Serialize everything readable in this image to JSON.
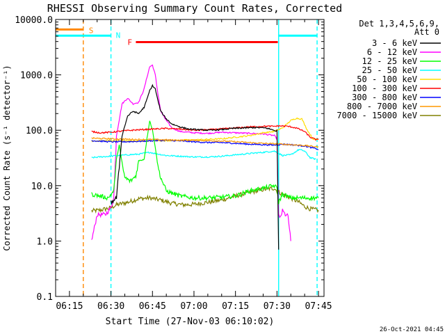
{
  "chart_data": {
    "type": "line",
    "title": "RHESSI Observing Summary Count Rates, Corrected",
    "xlabel": "Start Time (27-Nov-03 06:10:02)",
    "ylabel": "Corrected Count Rate (s⁻¹ detector⁻¹)",
    "yscale": "log",
    "ylim": [
      0.1,
      10000
    ],
    "xlim_minutes": [
      0,
      97
    ],
    "x_ticks": [
      {
        "m": 5,
        "label": "06:15"
      },
      {
        "m": 20,
        "label": "06:30"
      },
      {
        "m": 35,
        "label": "06:45"
      },
      {
        "m": 50,
        "label": "07:00"
      },
      {
        "m": 65,
        "label": "07:15"
      },
      {
        "m": 80,
        "label": "07:30"
      },
      {
        "m": 95,
        "label": "07:45"
      }
    ],
    "y_ticks": [
      {
        "v": 0.1,
        "label": "0.1"
      },
      {
        "v": 1,
        "label": "1.0"
      },
      {
        "v": 10,
        "label": "10.0"
      },
      {
        "v": 100,
        "label": "100.0"
      },
      {
        "v": 1000,
        "label": "1000.0"
      },
      {
        "v": 10000,
        "label": "10000.0"
      }
    ],
    "legend_header": [
      "Det 1,3,4,5,6,9,",
      "Att 0"
    ],
    "legend_position": "right",
    "series": [
      {
        "name": "3 - 6 keV",
        "color": "#000000",
        "points": [
          [
            20,
            5
          ],
          [
            22,
            6
          ],
          [
            24,
            80
          ],
          [
            26,
            180
          ],
          [
            28,
            220
          ],
          [
            30,
            200
          ],
          [
            32,
            260
          ],
          [
            33,
            360
          ],
          [
            34,
            520
          ],
          [
            35,
            640
          ],
          [
            36,
            560
          ],
          [
            37,
            340
          ],
          [
            38,
            220
          ],
          [
            40,
            160
          ],
          [
            42,
            130
          ],
          [
            45,
            115
          ],
          [
            48,
            105
          ],
          [
            52,
            102
          ],
          [
            56,
            100
          ],
          [
            60,
            103
          ],
          [
            64,
            108
          ],
          [
            68,
            110
          ],
          [
            72,
            112
          ],
          [
            76,
            110
          ],
          [
            79,
            100
          ],
          [
            80,
            95
          ],
          [
            80.6,
            0.7
          ]
        ]
      },
      {
        "name": "6 - 12 keV",
        "color": "#ff00ff",
        "points": [
          [
            13,
            1
          ],
          [
            15,
            3
          ],
          [
            18,
            3
          ],
          [
            20,
            4
          ],
          [
            21,
            6
          ],
          [
            22,
            80
          ],
          [
            24,
            300
          ],
          [
            26,
            380
          ],
          [
            28,
            300
          ],
          [
            30,
            320
          ],
          [
            32,
            560
          ],
          [
            33,
            900
          ],
          [
            34,
            1400
          ],
          [
            35,
            1500
          ],
          [
            36,
            1000
          ],
          [
            37,
            450
          ],
          [
            38,
            220
          ],
          [
            40,
            150
          ],
          [
            42,
            110
          ],
          [
            45,
            95
          ],
          [
            50,
            90
          ],
          [
            55,
            88
          ],
          [
            60,
            92
          ],
          [
            65,
            90
          ],
          [
            70,
            88
          ],
          [
            75,
            86
          ],
          [
            79,
            80
          ],
          [
            80,
            70
          ],
          [
            80.6,
            3
          ],
          [
            81,
            2.5
          ],
          [
            82,
            3.5
          ],
          [
            83,
            3
          ],
          [
            84,
            2.8
          ],
          [
            85,
            1
          ]
        ]
      },
      {
        "name": "12 - 25 keV",
        "color": "#00ff00",
        "points": [
          [
            13,
            7
          ],
          [
            16,
            6.5
          ],
          [
            19,
            6
          ],
          [
            21,
            8
          ],
          [
            22,
            30
          ],
          [
            23,
            55
          ],
          [
            24,
            25
          ],
          [
            25,
            14
          ],
          [
            27,
            12
          ],
          [
            29,
            15
          ],
          [
            30,
            28
          ],
          [
            32,
            30
          ],
          [
            33,
            70
          ],
          [
            34,
            150
          ],
          [
            35,
            100
          ],
          [
            36,
            50
          ],
          [
            37,
            22
          ],
          [
            38,
            14
          ],
          [
            40,
            8
          ],
          [
            45,
            6.5
          ],
          [
            50,
            6
          ],
          [
            55,
            6
          ],
          [
            60,
            6.2
          ],
          [
            65,
            6.5
          ],
          [
            70,
            8
          ],
          [
            75,
            9
          ],
          [
            79,
            10
          ],
          [
            80,
            9
          ],
          [
            80.6,
            5
          ],
          [
            82,
            7
          ],
          [
            85,
            6
          ],
          [
            90,
            6
          ],
          [
            95,
            6
          ]
        ]
      },
      {
        "name": "25 - 50 keV",
        "color": "#00ffff",
        "points": [
          [
            13,
            32
          ],
          [
            16,
            33
          ],
          [
            20,
            34
          ],
          [
            23,
            35
          ],
          [
            26,
            36
          ],
          [
            30,
            37
          ],
          [
            34,
            40
          ],
          [
            36,
            38
          ],
          [
            40,
            35
          ],
          [
            45,
            34
          ],
          [
            50,
            33
          ],
          [
            55,
            33
          ],
          [
            60,
            34
          ],
          [
            65,
            36
          ],
          [
            70,
            38
          ],
          [
            75,
            40
          ],
          [
            79,
            42
          ],
          [
            80,
            40
          ],
          [
            82,
            35
          ],
          [
            85,
            36
          ],
          [
            88,
            45
          ],
          [
            90,
            42
          ],
          [
            92,
            32
          ],
          [
            94,
            30
          ]
        ]
      },
      {
        "name": "50 - 100 keV",
        "color": "#ffdd00",
        "points": [
          [
            13,
            64
          ],
          [
            20,
            65
          ],
          [
            30,
            64
          ],
          [
            40,
            65
          ],
          [
            50,
            67
          ],
          [
            60,
            70
          ],
          [
            65,
            75
          ],
          [
            70,
            80
          ],
          [
            75,
            90
          ],
          [
            79,
            95
          ],
          [
            82,
            110
          ],
          [
            85,
            150
          ],
          [
            87,
            165
          ],
          [
            89,
            160
          ],
          [
            91,
            100
          ],
          [
            93,
            70
          ],
          [
            95,
            68
          ]
        ]
      },
      {
        "name": "100 - 300 keV",
        "color": "#ff0000",
        "points": [
          [
            13,
            95
          ],
          [
            16,
            90
          ],
          [
            20,
            92
          ],
          [
            25,
            98
          ],
          [
            30,
            102
          ],
          [
            35,
            105
          ],
          [
            40,
            108
          ],
          [
            45,
            105
          ],
          [
            50,
            100
          ],
          [
            55,
            102
          ],
          [
            60,
            106
          ],
          [
            65,
            110
          ],
          [
            70,
            115
          ],
          [
            75,
            118
          ],
          [
            79,
            118
          ],
          [
            81,
            120
          ],
          [
            84,
            118
          ],
          [
            87,
            110
          ],
          [
            90,
            95
          ],
          [
            92,
            75
          ],
          [
            94,
            68
          ],
          [
            95,
            68
          ]
        ]
      },
      {
        "name": "300 - 800 keV",
        "color": "#0000ff",
        "points": [
          [
            13,
            65
          ],
          [
            20,
            62
          ],
          [
            25,
            62
          ],
          [
            30,
            63
          ],
          [
            35,
            65
          ],
          [
            40,
            66
          ],
          [
            45,
            64
          ],
          [
            50,
            62
          ],
          [
            55,
            60
          ],
          [
            60,
            60
          ],
          [
            65,
            58
          ],
          [
            70,
            56
          ],
          [
            75,
            55
          ],
          [
            79,
            54
          ],
          [
            82,
            56
          ],
          [
            85,
            55
          ],
          [
            90,
            52
          ],
          [
            93,
            48
          ],
          [
            95,
            45
          ]
        ]
      },
      {
        "name": "800 - 7000 keV",
        "color": "#ff9900",
        "points": [
          [
            13,
            72
          ],
          [
            20,
            70
          ],
          [
            25,
            69
          ],
          [
            30,
            68
          ],
          [
            35,
            68
          ],
          [
            40,
            67
          ],
          [
            45,
            66
          ],
          [
            50,
            66
          ],
          [
            55,
            65
          ],
          [
            60,
            64
          ],
          [
            65,
            62
          ],
          [
            70,
            60
          ],
          [
            75,
            58
          ],
          [
            79,
            57
          ],
          [
            82,
            56
          ],
          [
            85,
            55
          ],
          [
            90,
            53
          ],
          [
            95,
            50
          ]
        ]
      },
      {
        "name": "7000 - 15000 keV",
        "color": "#808000",
        "points": [
          [
            13,
            3.5
          ],
          [
            16,
            3.6
          ],
          [
            20,
            4
          ],
          [
            22,
            4.5
          ],
          [
            26,
            5
          ],
          [
            30,
            5.8
          ],
          [
            34,
            6
          ],
          [
            38,
            5.5
          ],
          [
            42,
            4.8
          ],
          [
            46,
            4.5
          ],
          [
            50,
            4.6
          ],
          [
            55,
            5
          ],
          [
            60,
            5.5
          ],
          [
            65,
            6.5
          ],
          [
            70,
            7.5
          ],
          [
            75,
            8.5
          ],
          [
            79,
            9
          ],
          [
            80,
            8
          ],
          [
            82,
            7
          ],
          [
            85,
            6
          ],
          [
            88,
            5
          ],
          [
            90,
            4.2
          ],
          [
            92,
            3.8
          ],
          [
            95,
            3.6
          ]
        ]
      }
    ],
    "bars": [
      {
        "label": "S",
        "color": "#ff8800",
        "x0": 0,
        "x1": 10,
        "y": 6600
      },
      {
        "label": "N",
        "color": "#00ffff",
        "x0": 0,
        "x1": 20,
        "y": 5100
      },
      {
        "label": "N",
        "color": "#00ffff",
        "x0": 80.6,
        "x1": 94.5,
        "y": 5100
      },
      {
        "label": "F",
        "color": "#ff0000",
        "x0": 29,
        "x1": 80.3,
        "y": 3900
      }
    ],
    "vlines": [
      {
        "x": 10,
        "color": "#ff8800",
        "dashed": true
      },
      {
        "x": 20,
        "color": "#00ffff",
        "dashed": true
      },
      {
        "x": 80.6,
        "color": "#00ffff",
        "dashed": false
      },
      {
        "x": 94.5,
        "color": "#00ffff",
        "dashed": true
      }
    ],
    "footer_date": "26-Oct-2021 04:45"
  }
}
